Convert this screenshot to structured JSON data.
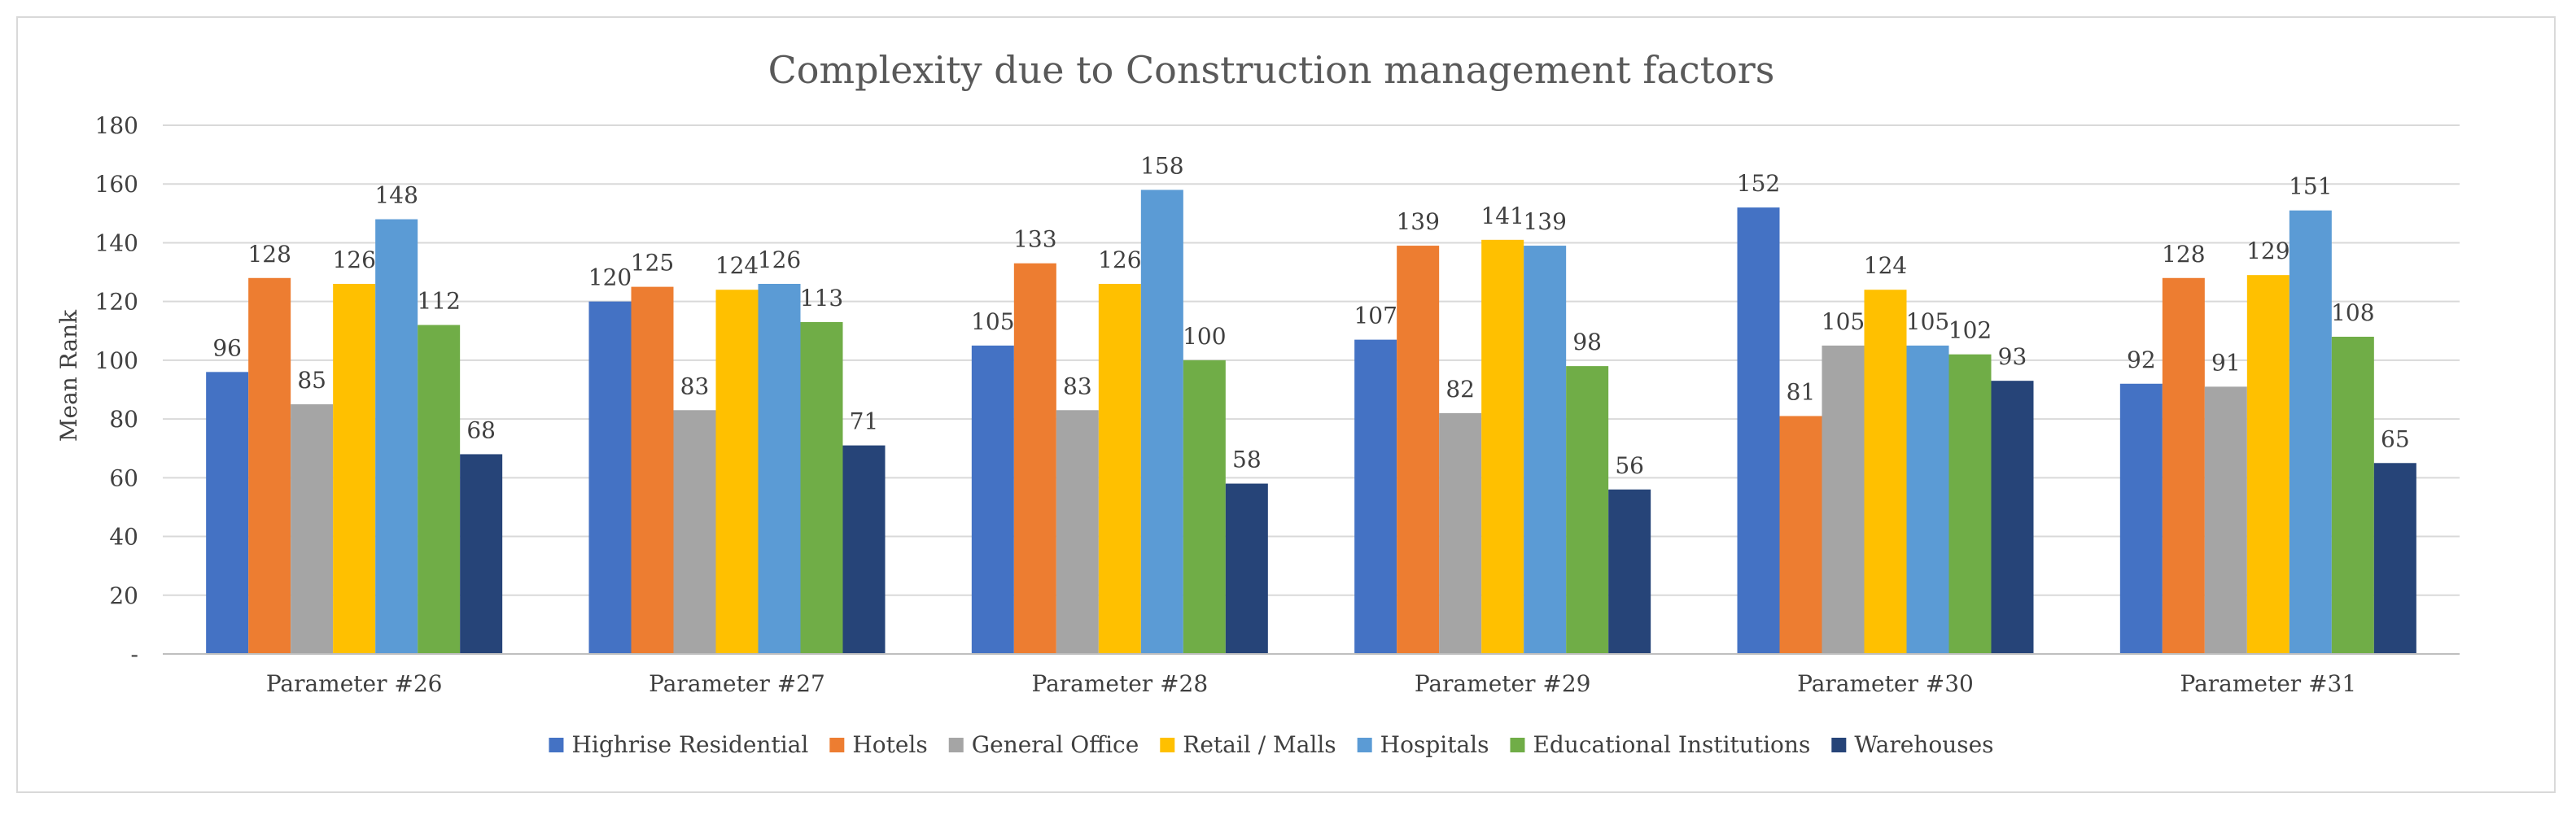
{
  "chart_data": {
    "type": "bar",
    "title": "Complexity due to Construction management factors",
    "xlabel": "",
    "ylabel": "Mean Rank",
    "ylim": [
      0,
      180
    ],
    "yticks": [
      0,
      20,
      40,
      60,
      80,
      100,
      120,
      140,
      160,
      180
    ],
    "ytick_labels": [
      "-",
      "20",
      "40",
      "60",
      "80",
      "100",
      "120",
      "140",
      "160",
      "180"
    ],
    "grid": true,
    "legend_position": "bottom",
    "categories": [
      "Parameter #26",
      "Parameter #27",
      "Parameter #28",
      "Parameter #29",
      "Parameter #30",
      "Parameter #31"
    ],
    "series": [
      {
        "name": "Highrise Residential",
        "color": "#4472c4",
        "values": [
          96,
          120,
          105,
          107,
          152,
          92
        ]
      },
      {
        "name": "Hotels",
        "color": "#ed7d31",
        "values": [
          128,
          125,
          133,
          139,
          81,
          128
        ]
      },
      {
        "name": "General Office",
        "color": "#a5a5a5",
        "values": [
          85,
          83,
          83,
          82,
          105,
          91
        ]
      },
      {
        "name": "Retail / Malls",
        "color": "#ffc000",
        "values": [
          126,
          124,
          126,
          141,
          124,
          129
        ]
      },
      {
        "name": "Hospitals",
        "color": "#5b9bd5",
        "values": [
          148,
          126,
          158,
          139,
          105,
          151
        ]
      },
      {
        "name": "Educational Institutions",
        "color": "#70ad47",
        "values": [
          112,
          113,
          100,
          98,
          102,
          108
        ]
      },
      {
        "name": "Warehouses",
        "color": "#264478",
        "values": [
          68,
          71,
          58,
          56,
          93,
          65
        ]
      }
    ]
  }
}
